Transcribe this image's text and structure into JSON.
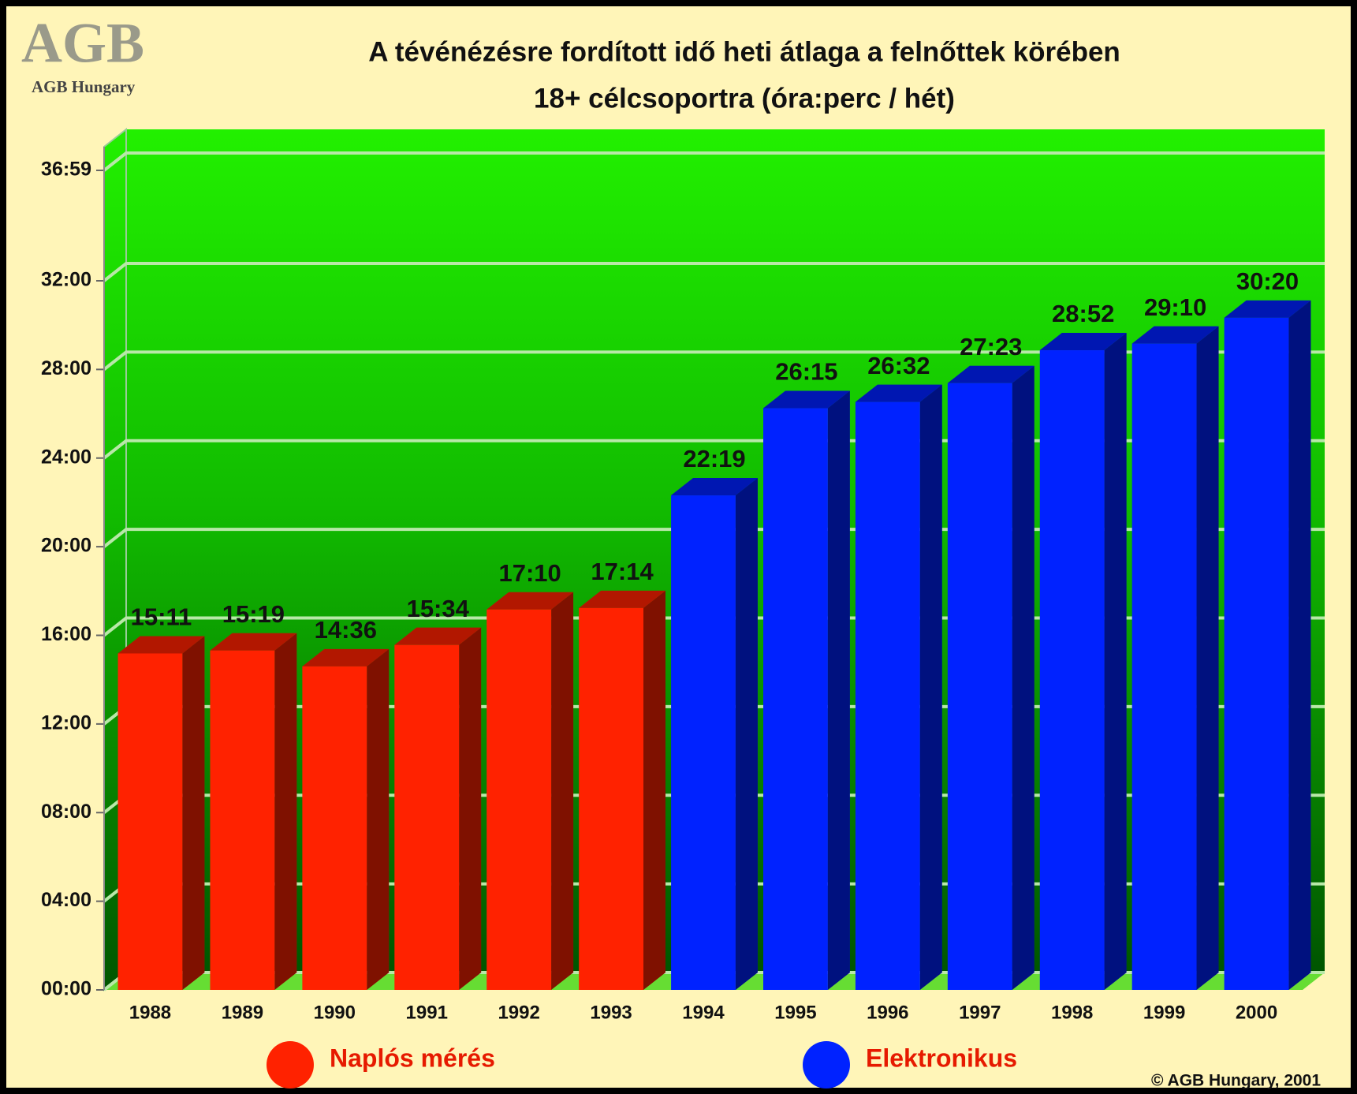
{
  "logo": "AGB",
  "logo_subtitle": "AGB Hungary",
  "copyright": "© AGB Hungary, 2001",
  "chart_data": {
    "type": "bar3d",
    "title": "A tévénézésre fordított idő heti átlaga a felnőttek körében",
    "subtitle": "18+ célcsoportra (óra:perc / hét)",
    "categories": [
      "1988",
      "1989",
      "1990",
      "1991",
      "1992",
      "1993",
      "1994",
      "1995",
      "1996",
      "1997",
      "1998",
      "1999",
      "2000"
    ],
    "series": [
      {
        "name": "Naplós mérés",
        "color": "#ff2200",
        "values": [
          911,
          919,
          876,
          934,
          1030,
          1034,
          null,
          null,
          null,
          null,
          null,
          null,
          null
        ],
        "value_labels": [
          "15:11",
          "15:19",
          "14:36",
          "15:34",
          "17:10",
          "17:14",
          null,
          null,
          null,
          null,
          null,
          null,
          null
        ]
      },
      {
        "name": "Elektronikus",
        "color": "#0022ff",
        "values": [
          null,
          null,
          null,
          null,
          null,
          null,
          1339,
          1575,
          1592,
          1643,
          1732,
          1750,
          1820
        ],
        "value_labels": [
          null,
          null,
          null,
          null,
          null,
          null,
          "22:19",
          "26:15",
          "26:32",
          "27:23",
          "28:52",
          "29:10",
          "30:20"
        ]
      }
    ],
    "ylim": [
      0,
      2219
    ],
    "yticks": [
      {
        "value": 0,
        "label": "00:00"
      },
      {
        "value": 240,
        "label": "04:00"
      },
      {
        "value": 480,
        "label": "08:00"
      },
      {
        "value": 720,
        "label": "12:00"
      },
      {
        "value": 960,
        "label": "16:00"
      },
      {
        "value": 1200,
        "label": "20:00"
      },
      {
        "value": 1440,
        "label": "24:00"
      },
      {
        "value": 1680,
        "label": "28:00"
      },
      {
        "value": 1920,
        "label": "32:00"
      },
      {
        "value": 2219,
        "label": "36:59"
      }
    ],
    "grid": true,
    "legend": "bottom"
  }
}
